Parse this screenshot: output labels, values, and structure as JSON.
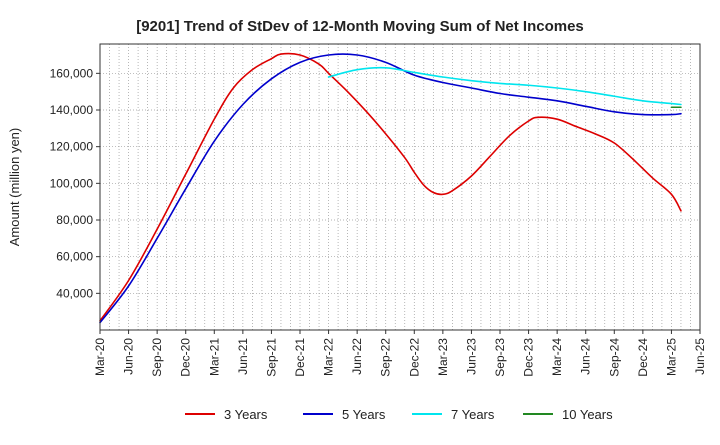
{
  "chart_data": {
    "type": "line",
    "title": "[9201]  Trend of StDev of 12-Month Moving Sum of Net Incomes",
    "xlabel": "",
    "ylabel": "Amount (million yen)",
    "x_ticks": [
      "Mar-20",
      "Jun-20",
      "Sep-20",
      "Dec-20",
      "Mar-21",
      "Jun-21",
      "Sep-21",
      "Dec-21",
      "Mar-22",
      "Jun-22",
      "Sep-22",
      "Dec-22",
      "Mar-23",
      "Jun-23",
      "Sep-23",
      "Dec-23",
      "Mar-24",
      "Jun-24",
      "Sep-24",
      "Dec-24",
      "Mar-25",
      "Jun-25"
    ],
    "y_ticks": [
      40000,
      60000,
      80000,
      100000,
      120000,
      140000,
      160000
    ],
    "y_tick_labels": [
      "40,000",
      "60,000",
      "80,000",
      "100,000",
      "120,000",
      "140,000",
      "160,000"
    ],
    "ylim": [
      20000,
      176000
    ],
    "grid": true,
    "legend_position": "bottom",
    "series": [
      {
        "name": "3 Years",
        "color": "#dd0000",
        "points": [
          [
            "Mar-20",
            25000
          ],
          [
            "Jun-20",
            47000
          ],
          [
            "Sep-20",
            75000
          ],
          [
            "Dec-20",
            105000
          ],
          [
            "Mar-21",
            135000
          ],
          [
            "May-21",
            152000
          ],
          [
            "Jul-21",
            162000
          ],
          [
            "Sep-21",
            168000
          ],
          [
            "Oct-21",
            170500
          ],
          [
            "Dec-21",
            170000
          ],
          [
            "Feb-22",
            165000
          ],
          [
            "Mar-22",
            160000
          ],
          [
            "May-22",
            150000
          ],
          [
            "Jul-22",
            139000
          ],
          [
            "Sep-22",
            127000
          ],
          [
            "Nov-22",
            114000
          ],
          [
            "Dec-22",
            106000
          ],
          [
            "Jan-23",
            99000
          ],
          [
            "Feb-23",
            95000
          ],
          [
            "Mar-23",
            94000
          ],
          [
            "Apr-23",
            96000
          ],
          [
            "Jun-23",
            104000
          ],
          [
            "Aug-23",
            115000
          ],
          [
            "Oct-23",
            126000
          ],
          [
            "Dec-23",
            134000
          ],
          [
            "Jan-24",
            136000
          ],
          [
            "Mar-24",
            135000
          ],
          [
            "May-24",
            131000
          ],
          [
            "Jul-24",
            127000
          ],
          [
            "Sep-24",
            122000
          ],
          [
            "Nov-24",
            113000
          ],
          [
            "Jan-25",
            103000
          ],
          [
            "Mar-25",
            94000
          ],
          [
            "Apr-25",
            85000
          ]
        ]
      },
      {
        "name": "5 Years",
        "color": "#0000cc",
        "points": [
          [
            "Mar-20",
            24000
          ],
          [
            "Jun-20",
            44000
          ],
          [
            "Sep-20",
            70000
          ],
          [
            "Dec-20",
            97000
          ],
          [
            "Mar-21",
            123000
          ],
          [
            "Jun-21",
            143000
          ],
          [
            "Sep-21",
            157000
          ],
          [
            "Dec-21",
            166000
          ],
          [
            "Mar-22",
            170000
          ],
          [
            "Jun-22",
            170000
          ],
          [
            "Sep-22",
            166000
          ],
          [
            "Dec-22",
            159000
          ],
          [
            "Mar-23",
            155000
          ],
          [
            "Jun-23",
            152000
          ],
          [
            "Sep-23",
            149000
          ],
          [
            "Dec-23",
            147000
          ],
          [
            "Mar-24",
            145000
          ],
          [
            "Jun-24",
            142000
          ],
          [
            "Sep-24",
            139000
          ],
          [
            "Dec-24",
            137500
          ],
          [
            "Mar-25",
            137500
          ],
          [
            "Apr-25",
            138000
          ]
        ]
      },
      {
        "name": "7 Years",
        "color": "#00e5ee",
        "points": [
          [
            "Mar-22",
            158000
          ],
          [
            "Jun-22",
            162000
          ],
          [
            "Sep-22",
            163000
          ],
          [
            "Dec-22",
            160500
          ],
          [
            "Mar-23",
            158000
          ],
          [
            "Jun-23",
            156000
          ],
          [
            "Sep-23",
            154500
          ],
          [
            "Dec-23",
            153500
          ],
          [
            "Mar-24",
            152000
          ],
          [
            "Jun-24",
            150000
          ],
          [
            "Sep-24",
            147500
          ],
          [
            "Dec-24",
            145000
          ],
          [
            "Mar-25",
            143500
          ],
          [
            "Apr-25",
            143000
          ]
        ]
      },
      {
        "name": "10 Years",
        "color": "#228822",
        "points": [
          [
            "Mar-25",
            141500
          ],
          [
            "Apr-25",
            141500
          ]
        ]
      }
    ]
  }
}
